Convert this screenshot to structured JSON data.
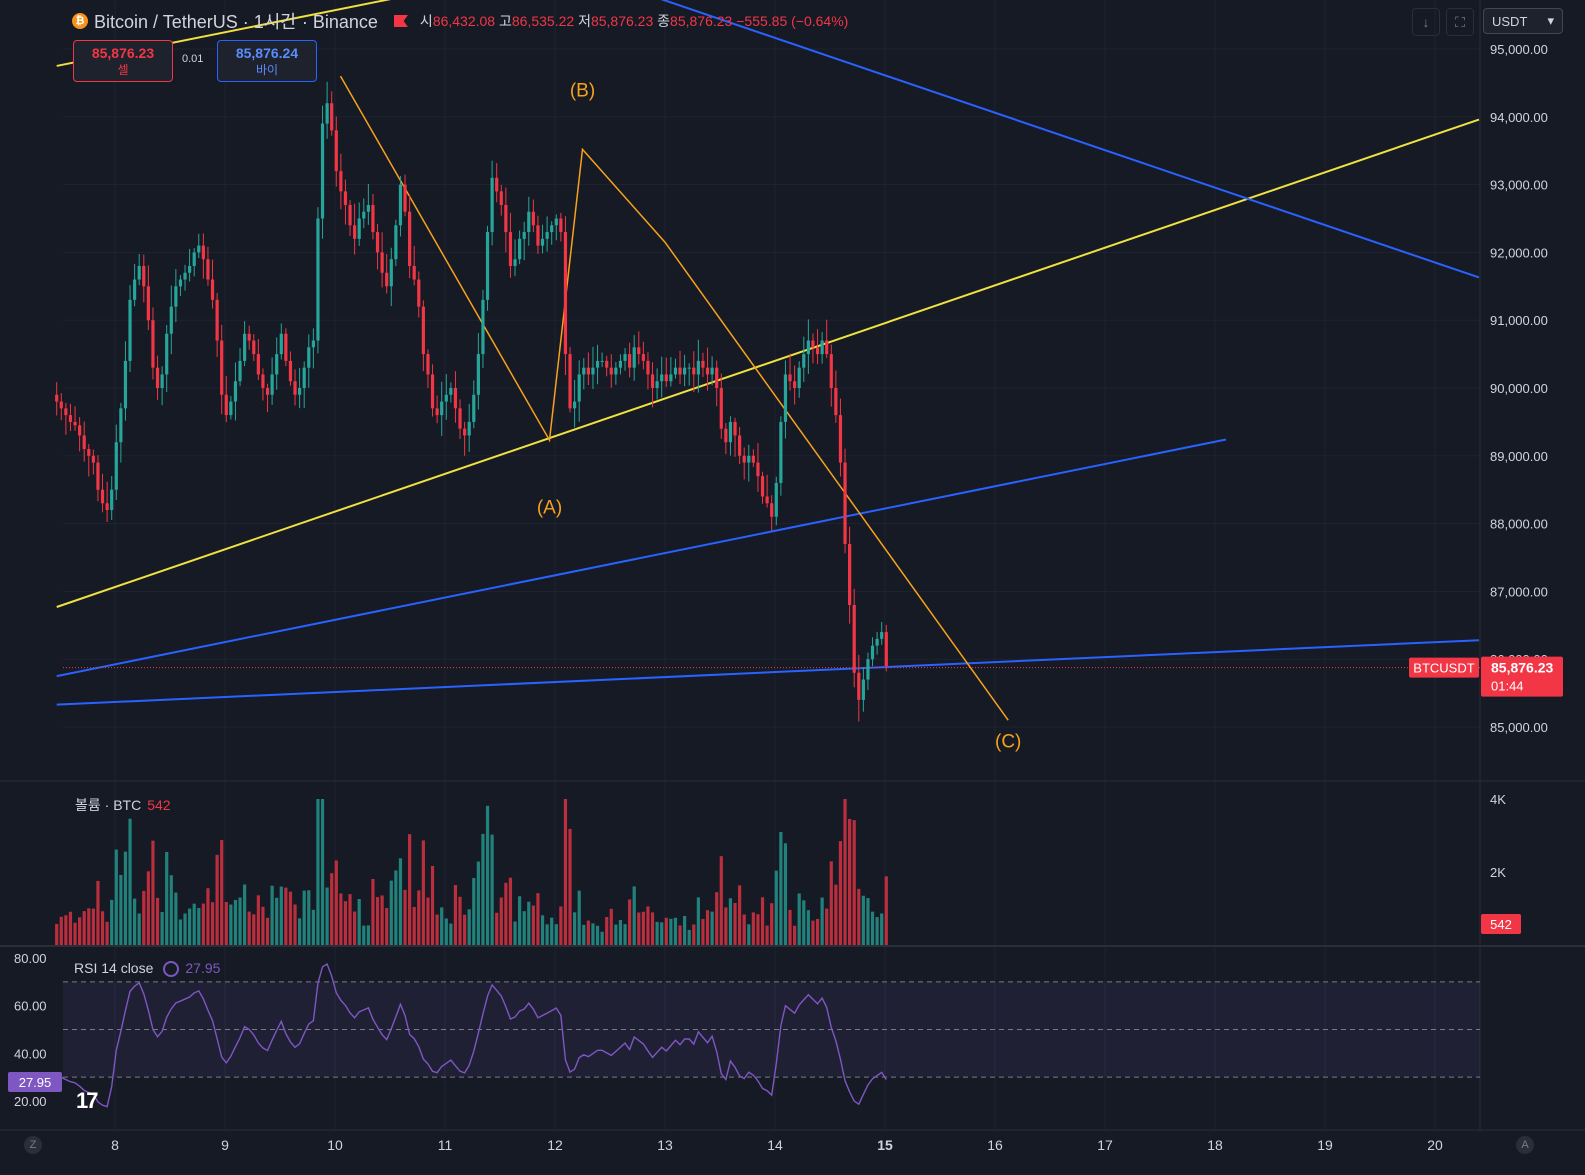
{
  "header": {
    "symbol": "Bitcoin / TetherUS · 1시간 · Binance",
    "open_label": "시",
    "open": "86,432.08",
    "high_label": "고",
    "high": "86,535.22",
    "low_label": "저",
    "low": "85,876.23",
    "close_label": "종",
    "close": "85,876.23",
    "change": "−555.85 (−0.64%)"
  },
  "trade": {
    "sell_price": "85,876.23",
    "sell_label": "셀",
    "buy_price": "85,876.24",
    "buy_label": "바이",
    "spread": "0.01"
  },
  "currency": "USDT",
  "icons": {
    "coin": "bitcoin-icon",
    "flag": "flag-icon",
    "down": "arrow-down-icon",
    "fullscreen": "fullscreen-icon",
    "rsi": "rsi-sync-icon"
  },
  "price_axis": [
    "95,000.00",
    "94,000.00",
    "93,000.00",
    "92,000.00",
    "91,000.00",
    "90,000.00",
    "89,000.00",
    "88,000.00",
    "87,000.00",
    "86,000.00",
    "85,000.00"
  ],
  "last_price": {
    "symbol": "BTCUSDT",
    "price": "85,876.23",
    "countdown": "01:44"
  },
  "volume": {
    "legend": "볼륨 · BTC",
    "value": "542",
    "axis": [
      "4K",
      "2K"
    ],
    "badge": "542"
  },
  "rsi": {
    "legend": "RSI 14 close",
    "value": "27.95",
    "axis": [
      "80.00",
      "60.00",
      "40.00",
      "20.00"
    ],
    "badge": "27.95"
  },
  "time_axis": [
    "8",
    "9",
    "10",
    "11",
    "12",
    "13",
    "14",
    "15",
    "16",
    "17",
    "18",
    "19",
    "20"
  ],
  "corner_left": "Z",
  "corner_right": "A",
  "logo": "17",
  "waves": [
    "(A)",
    "(B)",
    "(C)"
  ],
  "colors": {
    "up": "#26a69a",
    "down": "#f23645",
    "yellow": "#f0e040",
    "blue": "#2962ff",
    "orange": "#f7a21b",
    "rsi": "#7e57c2"
  },
  "chart_data": {
    "type": "candlestick",
    "x_range_days": [
      7.5,
      20.4
    ],
    "ylim": [
      84200,
      95300
    ],
    "candles_hourly_close": [
      89800,
      89700,
      89600,
      89500,
      89450,
      89300,
      89100,
      89000,
      88900,
      88500,
      88300,
      88200,
      88500,
      89200,
      89700,
      90400,
      91300,
      91600,
      91800,
      91500,
      91000,
      90300,
      90000,
      90200,
      90800,
      91200,
      91500,
      91600,
      91700,
      91800,
      92000,
      92100,
      91900,
      91600,
      91300,
      90700,
      89900,
      89600,
      89800,
      90100,
      90400,
      90800,
      90700,
      90500,
      90200,
      90000,
      89900,
      90200,
      90500,
      90800,
      90400,
      90100,
      89900,
      90000,
      90300,
      90600,
      90700,
      92500,
      93900,
      94200,
      93800,
      93200,
      92900,
      92700,
      92400,
      92200,
      92500,
      92600,
      92700,
      92300,
      92000,
      91700,
      91500,
      91900,
      92400,
      93000,
      92600,
      91800,
      91600,
      91200,
      90500,
      90200,
      89700,
      89600,
      89800,
      89900,
      90000,
      89700,
      89400,
      89300,
      89500,
      89900,
      90500,
      91300,
      92300,
      93100,
      92900,
      92700,
      92300,
      91800,
      91900,
      92200,
      92300,
      92600,
      92400,
      92100,
      92200,
      92300,
      92400,
      92500,
      92300,
      90500,
      89700,
      89800,
      90200,
      90300,
      90200,
      90300,
      90400,
      90400,
      90300,
      90200,
      90300,
      90400,
      90500,
      90300,
      90600,
      90500,
      90400,
      90200,
      90000,
      90100,
      90200,
      90100,
      90200,
      90300,
      90200,
      90300,
      90300,
      90200,
      90400,
      90300,
      90200,
      90300,
      90000,
      89400,
      89200,
      89500,
      89300,
      89000,
      88900,
      89000,
      88900,
      88700,
      88400,
      88300,
      88100,
      88600,
      89500,
      90200,
      90100,
      90000,
      90300,
      90500,
      90700,
      90600,
      90500,
      90700,
      90500,
      90000,
      89600,
      88900,
      87700,
      86800,
      85800,
      85400,
      85700,
      86000,
      86200,
      86300,
      86400,
      85900
    ],
    "annotations": [
      "(A)",
      "(B)",
      "(C)"
    ],
    "volume_max": 4000,
    "rsi_range": [
      10,
      90
    ],
    "rsi_bands": [
      70,
      50,
      30
    ]
  }
}
